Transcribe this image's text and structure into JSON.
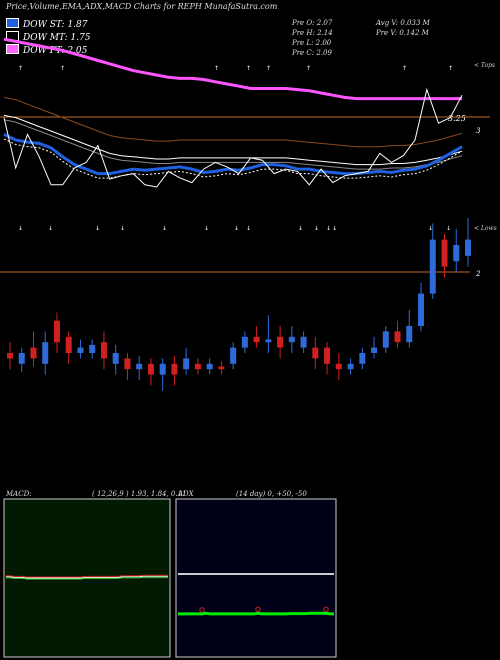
{
  "header": {
    "title": "Price,Volume,EMA,ADX,MACD Charts for REPH MunafaSutra.com",
    "legend": [
      {
        "label": "DOW ST: 1.87",
        "color": "#1f5fe0"
      },
      {
        "label": "DOW MT: 1.75",
        "color": "#000000"
      },
      {
        "label": "DOW PT: 2.05",
        "color": "#ff66ff"
      }
    ],
    "ohlc_left": [
      "Pre   O: 2.07",
      "Pre   H: 2.14",
      "Pre   L: 2.00",
      "Pre   C: 2.09"
    ],
    "ohlc_right": [
      "Avg V: 0.033  M",
      "Pre   V: 0.142  M"
    ]
  },
  "upper_panel": {
    "level_label": "3.25",
    "axis_tick": "3",
    "corner_tag": "< Tops"
  },
  "lower_panel": {
    "axis_tick": "2",
    "corner_tag": "< Lows"
  },
  "macd": {
    "label": "MACD:",
    "params": "( 12,26,9 ) 1.93,  1.84,  0.11"
  },
  "adx": {
    "label": "ADX",
    "params": "(14  day) 0,  +50,  -50"
  },
  "chart_data": {
    "type": "line",
    "series": [
      {
        "name": "DOW PT",
        "values": [
          3.9,
          3.88,
          3.86,
          3.84,
          3.82,
          3.8,
          3.77,
          3.74,
          3.71,
          3.68,
          3.65,
          3.62,
          3.6,
          3.58,
          3.56,
          3.55,
          3.55,
          3.54,
          3.52,
          3.5,
          3.48,
          3.46,
          3.46,
          3.46,
          3.46,
          3.45,
          3.44,
          3.42,
          3.4,
          3.38,
          3.37,
          3.37,
          3.37,
          3.37,
          3.37,
          3.37,
          3.37,
          3.37,
          3.37,
          3.37
        ]
      },
      {
        "name": "DOW ST",
        "values": [
          3.05,
          3.0,
          2.98,
          2.97,
          2.93,
          2.85,
          2.78,
          2.74,
          2.7,
          2.7,
          2.72,
          2.74,
          2.73,
          2.74,
          2.75,
          2.76,
          2.74,
          2.71,
          2.72,
          2.74,
          2.73,
          2.75,
          2.78,
          2.78,
          2.77,
          2.74,
          2.74,
          2.72,
          2.71,
          2.7,
          2.7,
          2.71,
          2.72,
          2.71,
          2.73,
          2.74,
          2.77,
          2.82,
          2.88,
          2.94
        ]
      },
      {
        "name": "DOW MT",
        "values": [
          3.18,
          3.16,
          3.12,
          3.08,
          3.04,
          3.0,
          2.96,
          2.92,
          2.88,
          2.84,
          2.82,
          2.81,
          2.8,
          2.79,
          2.79,
          2.8,
          2.8,
          2.8,
          2.8,
          2.8,
          2.8,
          2.8,
          2.8,
          2.8,
          2.8,
          2.79,
          2.78,
          2.77,
          2.76,
          2.75,
          2.74,
          2.74,
          2.74,
          2.75,
          2.75,
          2.76,
          2.78,
          2.8,
          2.83,
          2.86
        ]
      }
    ],
    "close": [
      3.2,
      2.75,
      3.05,
      2.85,
      2.6,
      2.6,
      2.75,
      2.8,
      2.95,
      2.65,
      2.68,
      2.7,
      2.6,
      2.58,
      2.72,
      2.66,
      2.62,
      2.74,
      2.8,
      2.76,
      2.7,
      2.84,
      2.82,
      2.7,
      2.74,
      2.72,
      2.6,
      2.74,
      2.62,
      2.68,
      2.7,
      2.72,
      2.88,
      2.8,
      2.86,
      3.0,
      3.45,
      3.15,
      3.2,
      3.4
    ],
    "candles": [
      {
        "o": 1.7,
        "c": 1.68,
        "h": 1.74,
        "l": 1.64
      },
      {
        "o": 1.66,
        "c": 1.7,
        "h": 1.72,
        "l": 1.63
      },
      {
        "o": 1.72,
        "c": 1.68,
        "h": 1.78,
        "l": 1.65
      },
      {
        "o": 1.66,
        "c": 1.74,
        "h": 1.78,
        "l": 1.62
      },
      {
        "o": 1.82,
        "c": 1.74,
        "h": 1.85,
        "l": 1.7
      },
      {
        "o": 1.76,
        "c": 1.7,
        "h": 1.78,
        "l": 1.66
      },
      {
        "o": 1.7,
        "c": 1.72,
        "h": 1.75,
        "l": 1.68
      },
      {
        "o": 1.7,
        "c": 1.73,
        "h": 1.75,
        "l": 1.68
      },
      {
        "o": 1.74,
        "c": 1.68,
        "h": 1.78,
        "l": 1.64
      },
      {
        "o": 1.66,
        "c": 1.7,
        "h": 1.73,
        "l": 1.62
      },
      {
        "o": 1.68,
        "c": 1.64,
        "h": 1.7,
        "l": 1.6
      },
      {
        "o": 1.64,
        "c": 1.66,
        "h": 1.69,
        "l": 1.6
      },
      {
        "o": 1.66,
        "c": 1.62,
        "h": 1.68,
        "l": 1.58
      },
      {
        "o": 1.62,
        "c": 1.66,
        "h": 1.68,
        "l": 1.56
      },
      {
        "o": 1.66,
        "c": 1.62,
        "h": 1.69,
        "l": 1.58
      },
      {
        "o": 1.64,
        "c": 1.68,
        "h": 1.72,
        "l": 1.62
      },
      {
        "o": 1.66,
        "c": 1.64,
        "h": 1.68,
        "l": 1.62
      },
      {
        "o": 1.64,
        "c": 1.66,
        "h": 1.68,
        "l": 1.62
      },
      {
        "o": 1.65,
        "c": 1.64,
        "h": 1.67,
        "l": 1.62
      },
      {
        "o": 1.66,
        "c": 1.72,
        "h": 1.74,
        "l": 1.64
      },
      {
        "o": 1.72,
        "c": 1.76,
        "h": 1.78,
        "l": 1.7
      },
      {
        "o": 1.76,
        "c": 1.74,
        "h": 1.8,
        "l": 1.72
      },
      {
        "o": 1.74,
        "c": 1.75,
        "h": 1.84,
        "l": 1.7
      },
      {
        "o": 1.76,
        "c": 1.72,
        "h": 1.8,
        "l": 1.68
      },
      {
        "o": 1.74,
        "c": 1.76,
        "h": 1.8,
        "l": 1.7
      },
      {
        "o": 1.72,
        "c": 1.76,
        "h": 1.78,
        "l": 1.7
      },
      {
        "o": 1.72,
        "c": 1.68,
        "h": 1.76,
        "l": 1.64
      },
      {
        "o": 1.72,
        "c": 1.66,
        "h": 1.74,
        "l": 1.62
      },
      {
        "o": 1.66,
        "c": 1.64,
        "h": 1.7,
        "l": 1.6
      },
      {
        "o": 1.64,
        "c": 1.66,
        "h": 1.68,
        "l": 1.62
      },
      {
        "o": 1.66,
        "c": 1.7,
        "h": 1.72,
        "l": 1.64
      },
      {
        "o": 1.7,
        "c": 1.72,
        "h": 1.76,
        "l": 1.68
      },
      {
        "o": 1.72,
        "c": 1.78,
        "h": 1.8,
        "l": 1.7
      },
      {
        "o": 1.78,
        "c": 1.74,
        "h": 1.82,
        "l": 1.72
      },
      {
        "o": 1.74,
        "c": 1.8,
        "h": 1.86,
        "l": 1.72
      },
      {
        "o": 1.8,
        "c": 1.92,
        "h": 1.96,
        "l": 1.78
      },
      {
        "o": 1.92,
        "c": 2.12,
        "h": 2.18,
        "l": 1.9
      },
      {
        "o": 2.12,
        "c": 2.02,
        "h": 2.14,
        "l": 1.98
      },
      {
        "o": 2.04,
        "c": 2.1,
        "h": 2.16,
        "l": 2.0
      },
      {
        "o": 2.06,
        "c": 2.12,
        "h": 2.2,
        "l": 2.02
      }
    ],
    "macd_values": [
      1.92,
      1.92,
      1.91,
      1.91,
      1.91,
      1.9,
      1.9,
      1.9,
      1.9,
      1.9,
      1.9,
      1.9,
      1.9,
      1.9,
      1.9,
      1.9,
      1.9,
      1.9,
      1.9,
      1.91,
      1.91,
      1.91,
      1.91,
      1.91,
      1.91,
      1.91,
      1.91,
      1.91,
      1.92,
      1.92,
      1.92,
      1.92,
      1.92,
      1.93,
      1.93,
      1.93,
      1.93,
      1.93,
      1.93,
      1.93
    ],
    "adx_values": [
      12,
      12,
      12,
      12,
      12,
      12,
      12,
      12,
      12,
      12,
      12,
      12,
      12,
      12,
      12,
      12,
      12,
      12,
      12,
      12,
      12,
      12,
      12,
      12,
      12,
      12,
      12,
      12,
      12,
      12,
      12,
      12,
      12,
      12,
      12,
      12,
      12,
      12,
      12,
      12
    ],
    "adx_di": [
      -18,
      -18,
      -18,
      -18,
      -18,
      -18,
      -18,
      -16,
      -18,
      -18,
      -18,
      -18,
      -18,
      -18,
      -18,
      -18,
      -18,
      -18,
      -18,
      -18,
      -16,
      -18,
      -18,
      -18,
      -18,
      -18,
      -18,
      -18,
      -17,
      -17,
      -17,
      -17,
      -17,
      -16,
      -16,
      -16,
      -16,
      -16,
      -18,
      -18
    ]
  }
}
